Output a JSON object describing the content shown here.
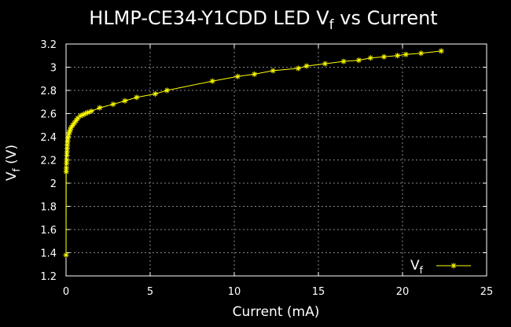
{
  "chart_data": {
    "type": "line",
    "title": {
      "main": "HLMP-CE34-Y1CDD LED V",
      "sub": "f",
      "tail": " vs Current"
    },
    "xlabel": "Current (mA)",
    "ylabel": {
      "main": "V",
      "sub": "f",
      "tail": " (V)"
    },
    "xlim": [
      0,
      25
    ],
    "ylim": [
      1.2,
      3.2
    ],
    "x_ticks": [
      0,
      5,
      10,
      15,
      20,
      25
    ],
    "x_tick_labels": [
      "0",
      "5",
      "10",
      "15",
      "20",
      "25"
    ],
    "y_ticks": [
      1.2,
      1.4,
      1.6,
      1.8,
      2.0,
      2.2,
      2.4,
      2.6,
      2.8,
      3.0,
      3.2
    ],
    "y_tick_labels": [
      "1.2",
      "1.4",
      "1.6",
      "1.8",
      "2",
      "2.2",
      "2.4",
      "2.6",
      "2.8",
      "3",
      "3.2"
    ],
    "grid": true,
    "legend_position": "bottom-right",
    "colors": {
      "background": "#000000",
      "series": "#ffff00",
      "grid": "#888888",
      "text": "#ffffff"
    },
    "series": [
      {
        "name": {
          "main": "V",
          "sub": "f"
        },
        "marker": "asterisk",
        "x": [
          0.0,
          0.01,
          0.02,
          0.03,
          0.04,
          0.05,
          0.06,
          0.07,
          0.08,
          0.1,
          0.12,
          0.15,
          0.2,
          0.25,
          0.3,
          0.4,
          0.5,
          0.6,
          0.7,
          0.85,
          1.0,
          1.15,
          1.3,
          1.5,
          2.0,
          2.8,
          3.5,
          4.2,
          5.3,
          6.0,
          8.7,
          10.2,
          11.2,
          12.3,
          13.8,
          14.3,
          15.4,
          16.5,
          17.4,
          18.1,
          18.9,
          19.7,
          20.2,
          21.1,
          22.3
        ],
        "values": [
          1.38,
          2.1,
          2.13,
          2.17,
          2.2,
          2.24,
          2.27,
          2.3,
          2.33,
          2.36,
          2.39,
          2.42,
          2.44,
          2.46,
          2.48,
          2.5,
          2.52,
          2.54,
          2.56,
          2.58,
          2.59,
          2.6,
          2.61,
          2.62,
          2.65,
          2.68,
          2.71,
          2.74,
          2.77,
          2.8,
          2.88,
          2.92,
          2.94,
          2.97,
          2.99,
          3.01,
          3.03,
          3.05,
          3.06,
          3.08,
          3.09,
          3.1,
          3.11,
          3.12,
          3.14
        ]
      }
    ]
  }
}
